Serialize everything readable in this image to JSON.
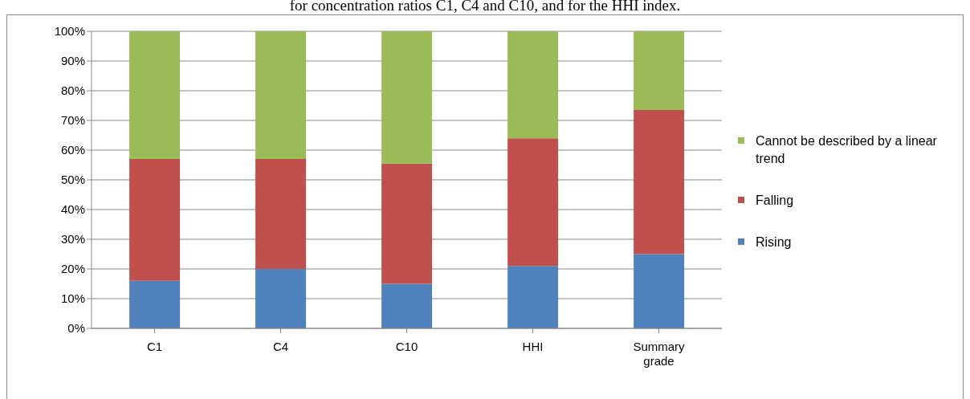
{
  "chart_data": {
    "type": "bar",
    "title": "for concentration ratios C1, C4 and C10, and for the HHI index.",
    "categories": [
      "C1",
      "C4",
      "C10",
      "HHI",
      "Summary grade"
    ],
    "stacked": true,
    "series": [
      {
        "name": "Rising",
        "color": "#4f81bd",
        "values": [
          16,
          20,
          15,
          21,
          25
        ]
      },
      {
        "name": "Falling",
        "color": "#c0504d",
        "values": [
          41,
          37,
          40.5,
          43,
          48.5
        ]
      },
      {
        "name": "Cannot be described by a linear trend",
        "color": "#9bbb59",
        "values": [
          43,
          43,
          44.5,
          36,
          26.5
        ]
      }
    ],
    "ylim": [
      0,
      100
    ],
    "yticks": [
      {
        "value": 0,
        "label": "0%"
      },
      {
        "value": 10,
        "label": "10%"
      },
      {
        "value": 20,
        "label": "20%"
      },
      {
        "value": 30,
        "label": "30%"
      },
      {
        "value": 40,
        "label": "40%"
      },
      {
        "value": 50,
        "label": "50%"
      },
      {
        "value": 60,
        "label": "60%"
      },
      {
        "value": 70,
        "label": "70%"
      },
      {
        "value": 80,
        "label": "80%"
      },
      {
        "value": 90,
        "label": "90%"
      },
      {
        "value": 100,
        "label": "100%"
      }
    ],
    "grid": "y",
    "legend": "right"
  }
}
